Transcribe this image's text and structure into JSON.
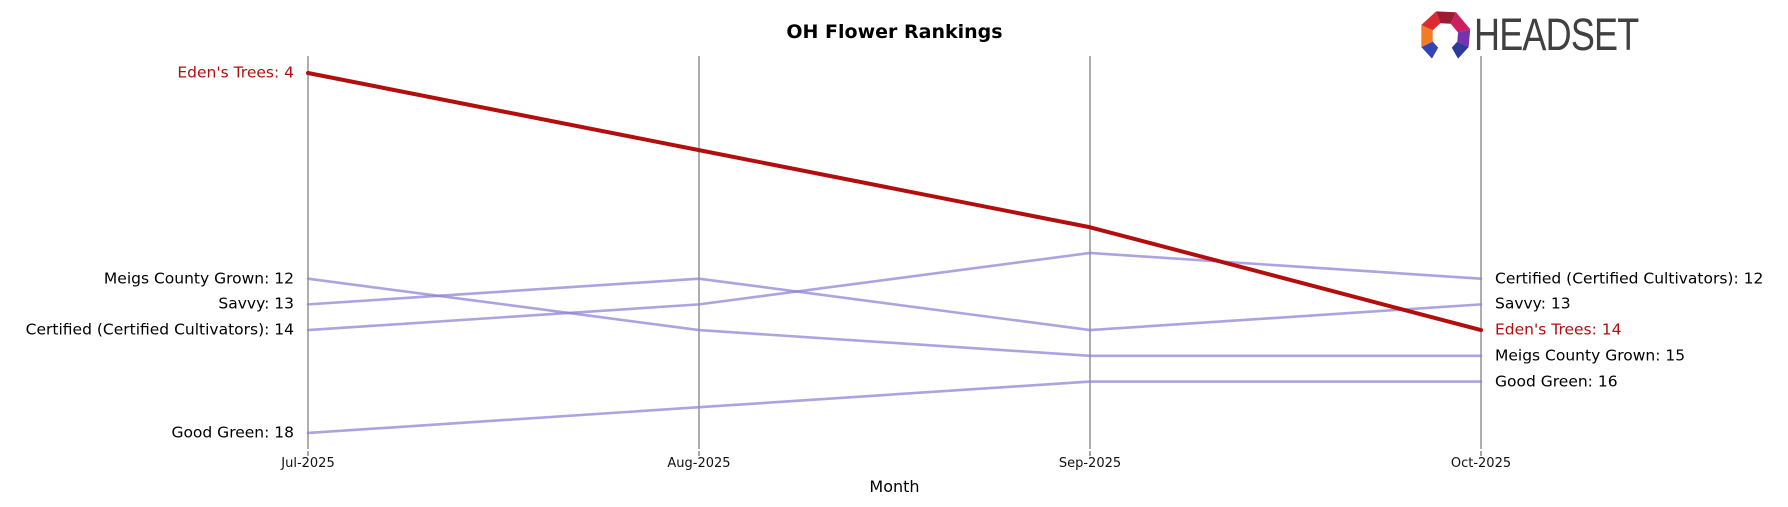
{
  "title": "OH Flower Rankings",
  "xlabel": "Month",
  "logo": {
    "text": "HEADSET"
  },
  "colors": {
    "highlight_red": "#b20e0e",
    "series_purple": "#8f80d6",
    "axis_gray": "#aeaeae",
    "label_black": "#000000",
    "logo_text_gray": "#404040"
  },
  "chart_data": {
    "type": "line",
    "subtype": "bump-rank-chart",
    "title": "OH Flower Rankings",
    "xlabel": "Month",
    "x": [
      "Jul-2025",
      "Aug-2025",
      "Sep-2025",
      "Oct-2025"
    ],
    "y_axis": "rank (lower is better, not drawn)",
    "rank_range": [
      4,
      18
    ],
    "grid": false,
    "legend": "endpoint labels on left and right",
    "series": [
      {
        "name": "Certified (Certified Cultivators)",
        "values": [
          14,
          13,
          11,
          12
        ],
        "color": "#8f80d6",
        "highlight": false
      },
      {
        "name": "Savvy",
        "values": [
          13,
          12,
          14,
          13
        ],
        "color": "#8f80d6",
        "highlight": false
      },
      {
        "name": "Meigs County Grown",
        "values": [
          12,
          14,
          15,
          15
        ],
        "color": "#8f80d6",
        "highlight": false
      },
      {
        "name": "Good Green",
        "values": [
          18,
          17,
          16,
          16
        ],
        "color": "#8f80d6",
        "highlight": false
      },
      {
        "name": "Eden's Trees",
        "values": [
          4,
          7,
          10,
          14
        ],
        "color": "#b20e0e",
        "highlight": true
      }
    ],
    "left_labels": [
      {
        "text": "Eden's Trees: 4",
        "rank": 4,
        "color": "#b20e0e"
      },
      {
        "text": "Meigs County Grown: 12",
        "rank": 12,
        "color": "#000000"
      },
      {
        "text": "Savvy: 13",
        "rank": 13,
        "color": "#000000"
      },
      {
        "text": "Certified (Certified Cultivators): 14",
        "rank": 14,
        "color": "#000000"
      },
      {
        "text": "Good Green: 18",
        "rank": 18,
        "color": "#000000"
      }
    ],
    "right_labels": [
      {
        "text": "Certified (Certified Cultivators): 12",
        "rank": 12,
        "color": "#000000"
      },
      {
        "text": "Savvy: 13",
        "rank": 13,
        "color": "#000000"
      },
      {
        "text": "Eden's Trees: 14",
        "rank": 14,
        "color": "#b20e0e"
      },
      {
        "text": "Meigs County Grown: 15",
        "rank": 15,
        "color": "#000000"
      },
      {
        "text": "Good Green: 16",
        "rank": 16,
        "color": "#000000"
      }
    ]
  }
}
